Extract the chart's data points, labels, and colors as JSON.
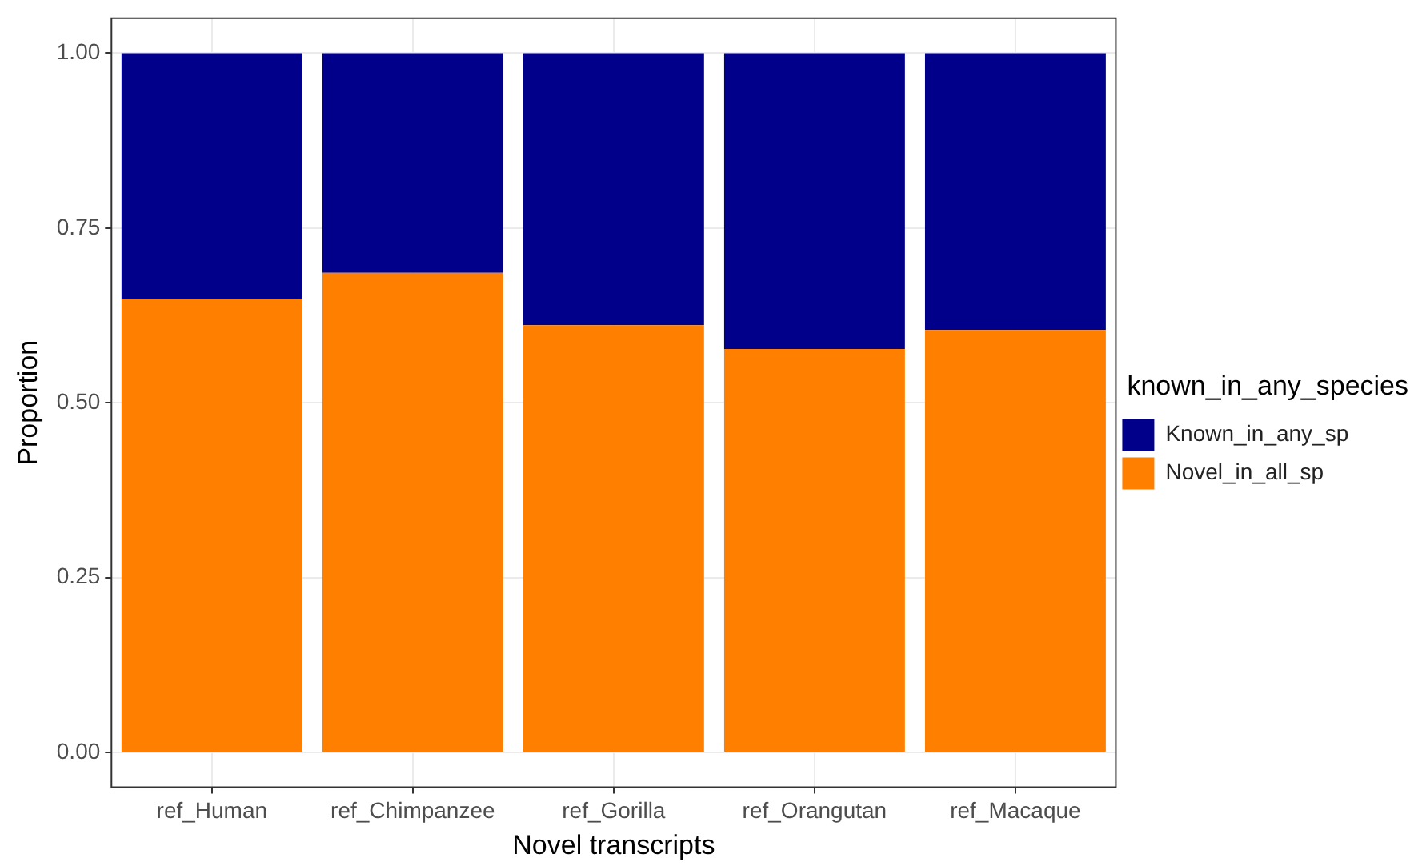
{
  "chart_data": {
    "type": "bar",
    "stacked": true,
    "xlabel": "Novel transcripts",
    "ylabel": "Proportion",
    "legend_title": "known_in_any_species",
    "categories": [
      "ref_Human",
      "ref_Chimpanzee",
      "ref_Gorilla",
      "ref_Orangutan",
      "ref_Macaque"
    ],
    "series": [
      {
        "name": "Novel_in_all_sp",
        "color": "#ff7f00",
        "values": [
          0.648,
          0.686,
          0.611,
          0.577,
          0.604
        ]
      },
      {
        "name": "Known_in_any_sp",
        "color": "#00008b",
        "values": [
          0.352,
          0.314,
          0.389,
          0.423,
          0.396
        ]
      }
    ],
    "ylim": [
      -0.05,
      1.05
    ],
    "yticks": [
      {
        "value": 0,
        "label": "0.00"
      },
      {
        "value": 0.25,
        "label": "0.25"
      },
      {
        "value": 0.5,
        "label": "0.50"
      },
      {
        "value": 0.75,
        "label": "0.75"
      },
      {
        "value": 1,
        "label": "1.00"
      }
    ],
    "grid": true,
    "legend": "right"
  }
}
